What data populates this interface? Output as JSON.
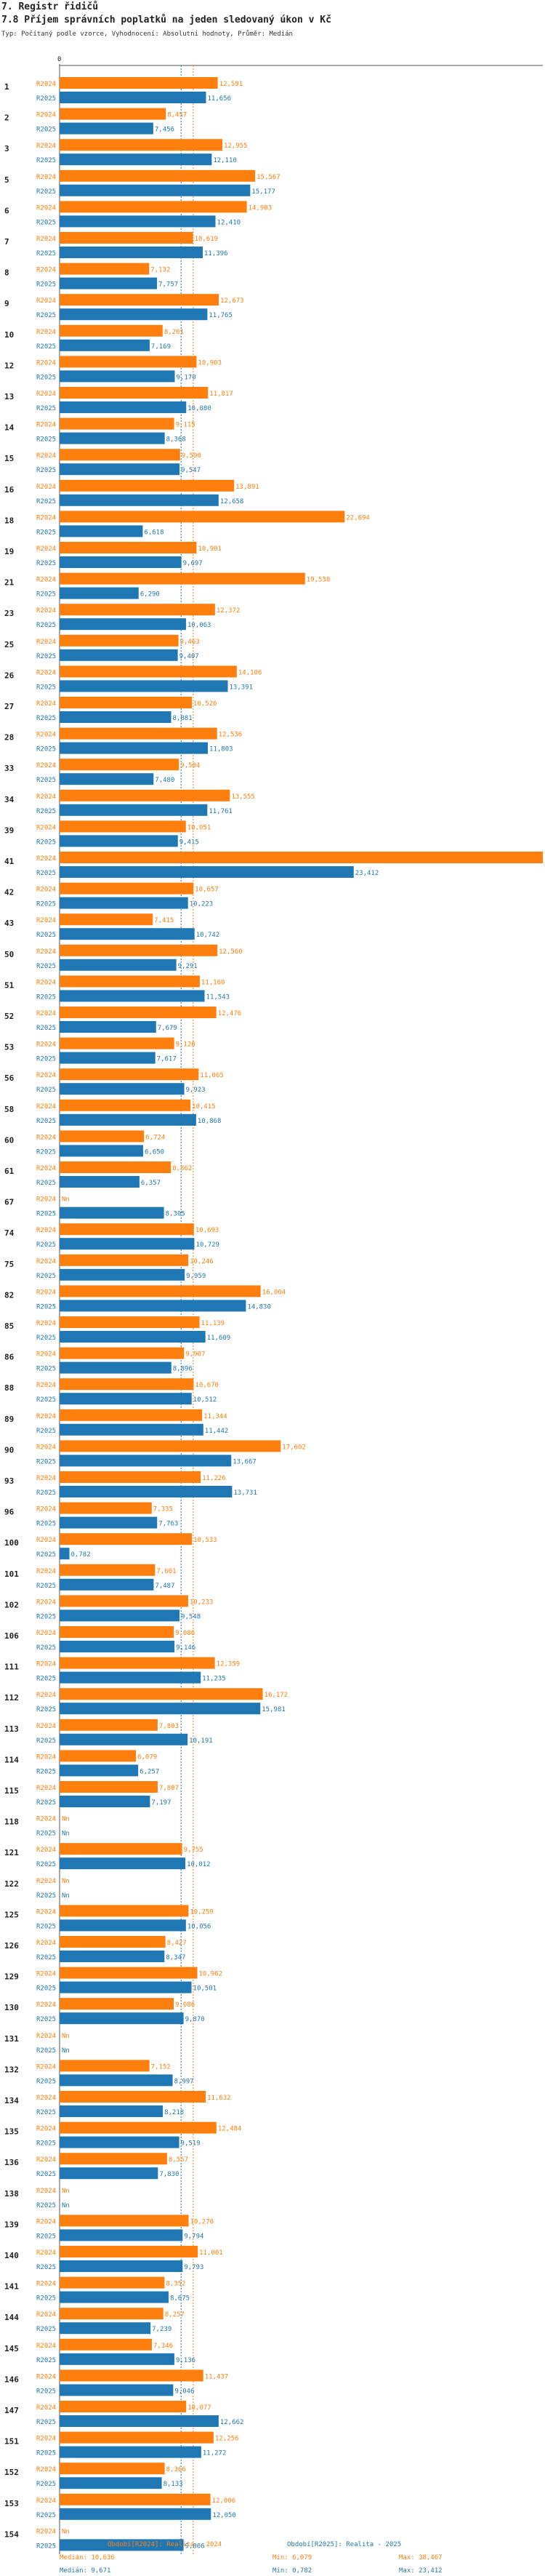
{
  "header": {
    "section": "7. Registr řidičů",
    "title": "7.8 Příjem správních poplatků na jeden sledovaný úkon v Kč",
    "subtitle": "Typ: Počítaný podle vzorce, Vyhodnocení: Absolutní hodnoty, Průměr: Medián"
  },
  "colors": {
    "s2024": "#ff7f0e",
    "s2025": "#1f77b4",
    "median2024": "#ff7f0e",
    "median2025": "#1f77b4"
  },
  "chart_data": {
    "type": "bar",
    "orientation": "horizontal",
    "title": "7.8 Příjem správních poplatků na jeden sledovaný úkon v Kč",
    "x_axis_tick": "0",
    "xlim": [
      0,
      38467
    ],
    "series_labels": [
      "R2024",
      "R2025"
    ],
    "missing_label": "Nn",
    "categories": [
      "1",
      "2",
      "3",
      "5",
      "6",
      "7",
      "8",
      "9",
      "10",
      "12",
      "13",
      "14",
      "15",
      "16",
      "18",
      "19",
      "21",
      "23",
      "25",
      "26",
      "27",
      "28",
      "33",
      "34",
      "39",
      "41",
      "42",
      "43",
      "50",
      "51",
      "52",
      "53",
      "56",
      "58",
      "60",
      "61",
      "67",
      "74",
      "75",
      "82",
      "85",
      "86",
      "88",
      "89",
      "90",
      "93",
      "96",
      "100",
      "101",
      "102",
      "106",
      "111",
      "112",
      "113",
      "114",
      "115",
      "118",
      "121",
      "122",
      "125",
      "126",
      "129",
      "130",
      "131",
      "132",
      "134",
      "135",
      "136",
      "138",
      "139",
      "140",
      "141",
      "144",
      "145",
      "146",
      "147",
      "151",
      "152",
      "153",
      "154"
    ],
    "series": [
      {
        "name": "R2024",
        "values": [
          12591,
          8457,
          12955,
          15567,
          14903,
          10619,
          7132,
          12673,
          8201,
          10903,
          11817,
          9115,
          9590,
          13891,
          22694,
          10901,
          19538,
          12372,
          9463,
          14106,
          10526,
          12536,
          9504,
          13555,
          10051,
          38467,
          10657,
          7415,
          12560,
          11160,
          12476,
          9120,
          11065,
          10415,
          6724,
          8862,
          null,
          10693,
          10246,
          16004,
          11139,
          9907,
          10670,
          11344,
          17602,
          11226,
          7335,
          10533,
          7601,
          10233,
          9086,
          12359,
          16172,
          7803,
          6079,
          7807,
          null,
          9755,
          null,
          10259,
          8427,
          10962,
          9086,
          null,
          7152,
          11632,
          12484,
          8557,
          null,
          10270,
          11001,
          8352,
          8257,
          7346,
          11437,
          10077,
          12256,
          8366,
          12006,
          null
        ]
      },
      {
        "name": "R2025",
        "values": [
          11656,
          7456,
          12110,
          15177,
          12410,
          11396,
          7757,
          11765,
          7169,
          9170,
          10080,
          8368,
          9547,
          12658,
          6618,
          9697,
          6290,
          10063,
          9407,
          13391,
          8881,
          11803,
          7480,
          11761,
          9415,
          23412,
          10223,
          10742,
          9291,
          11543,
          7679,
          7617,
          9923,
          10868,
          6650,
          6357,
          8305,
          10729,
          9959,
          14830,
          11609,
          8896,
          10512,
          11442,
          13667,
          13731,
          7763,
          782,
          7487,
          9548,
          9146,
          11235,
          15981,
          10191,
          6257,
          7197,
          null,
          10012,
          null,
          10056,
          8347,
          10501,
          9870,
          null,
          8997,
          8218,
          9519,
          7830,
          null,
          9794,
          9793,
          8675,
          7239,
          9136,
          9046,
          12662,
          11272,
          8133,
          12050,
          9866
        ]
      }
    ],
    "median_2024": "Medián: 10,636",
    "median_2025": "Medián: 9,671"
  },
  "footer": {
    "legend_2024": "Období[R2024]: Realita - 2024",
    "legend_2025": "Období[R2025]: Realita - 2025",
    "median_2024": "Medián: 10,636",
    "min_2024": "Min: 6,079",
    "max_2024": "Max: 38,467",
    "median_2025": "Medián: 9,671",
    "min_2025": "Min: 0,782",
    "max_2025": "Max: 23,412"
  }
}
